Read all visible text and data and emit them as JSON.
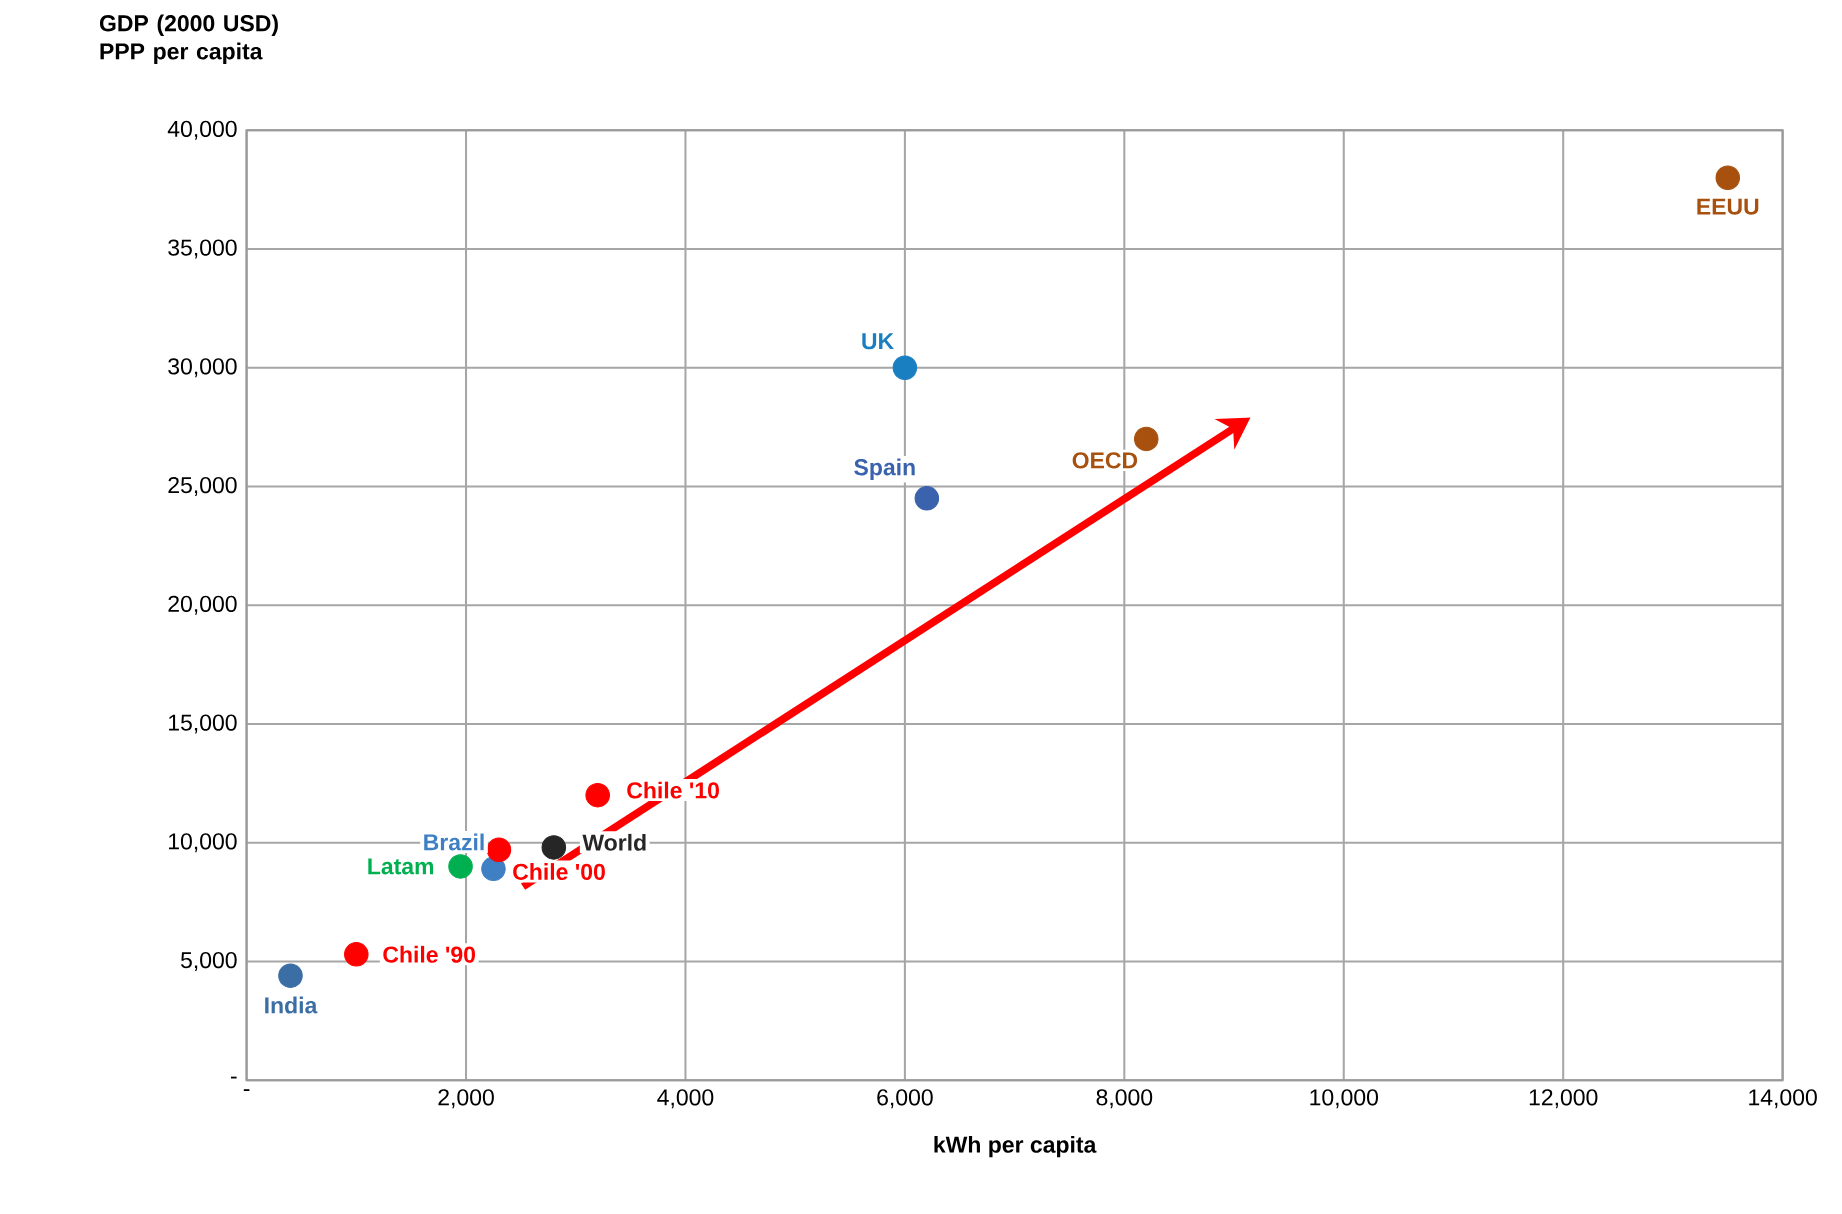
{
  "chart_data": {
    "type": "scatter",
    "xlabel": "kWh per capita",
    "ylabel": "GDP (2000 USD) PPP per capita",
    "xlim": [
      0,
      14000
    ],
    "ylim": [
      0,
      40000
    ],
    "xticks": [
      {
        "value": 0,
        "label": "-"
      },
      {
        "value": 2000,
        "label": "2,000"
      },
      {
        "value": 4000,
        "label": "4,000"
      },
      {
        "value": 6000,
        "label": "6,000"
      },
      {
        "value": 8000,
        "label": "8,000"
      },
      {
        "value": 10000,
        "label": "10,000"
      },
      {
        "value": 12000,
        "label": "12,000"
      },
      {
        "value": 14000,
        "label": "14,000"
      }
    ],
    "yticks": [
      {
        "value": 0,
        "label": "-"
      },
      {
        "value": 5000,
        "label": "5,000"
      },
      {
        "value": 10000,
        "label": "10,000"
      },
      {
        "value": 15000,
        "label": "15,000"
      },
      {
        "value": 20000,
        "label": "20,000"
      },
      {
        "value": 25000,
        "label": "25,000"
      },
      {
        "value": 30000,
        "label": "30,000"
      },
      {
        "value": 35000,
        "label": "35,000"
      },
      {
        "value": 40000,
        "label": "40,000"
      }
    ],
    "grid": true,
    "marker": "circle",
    "series": [
      {
        "name": "India",
        "color": "#3a6ea5",
        "x": [
          400
        ],
        "values": [
          4400
        ]
      },
      {
        "name": "Chile '90",
        "color": "#ff0000",
        "x": [
          1000
        ],
        "values": [
          5300
        ]
      },
      {
        "name": "Latam",
        "color": "#00b050",
        "x": [
          1950
        ],
        "values": [
          9000
        ]
      },
      {
        "name": "Brazil",
        "color": "#3f7fc4",
        "x": [
          2250
        ],
        "values": [
          8900
        ]
      },
      {
        "name": "Chile '00",
        "color": "#ff0000",
        "x": [
          2300
        ],
        "values": [
          9700
        ]
      },
      {
        "name": "World",
        "color": "#262626",
        "x": [
          2800
        ],
        "values": [
          9800
        ]
      },
      {
        "name": "Chile '10",
        "color": "#ff0000",
        "x": [
          3200
        ],
        "values": [
          12000
        ]
      },
      {
        "name": "UK",
        "color": "#1a7fc0",
        "x": [
          6000
        ],
        "values": [
          30000
        ]
      },
      {
        "name": "Spain",
        "color": "#3a62ad",
        "x": [
          6200
        ],
        "values": [
          24500
        ]
      },
      {
        "name": "OECD",
        "color": "#a8500e",
        "x": [
          8200
        ],
        "values": [
          27000
        ]
      },
      {
        "name": "EEUU",
        "color": "#a8500e",
        "x": [
          13500
        ],
        "values": [
          38000
        ]
      }
    ]
  }
}
